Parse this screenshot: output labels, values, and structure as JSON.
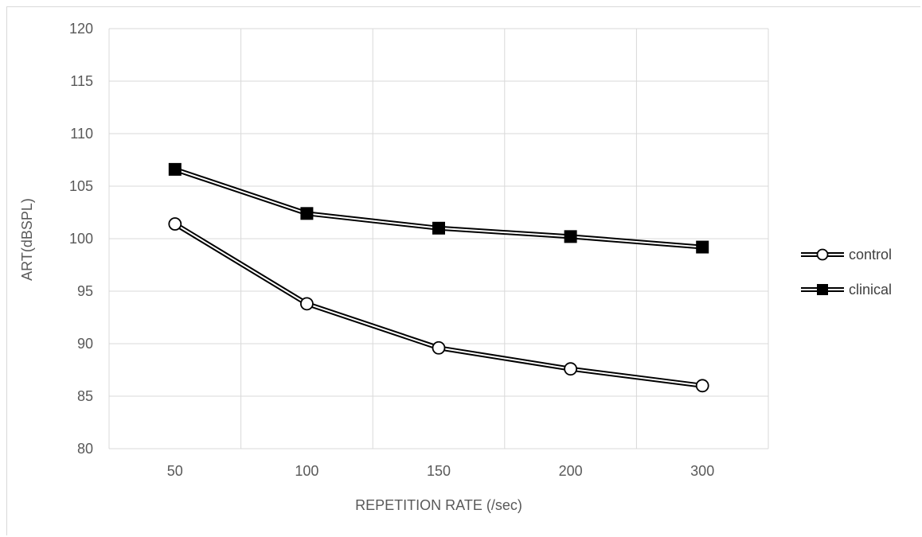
{
  "chart_data": {
    "type": "line",
    "categories": [
      "50",
      "100",
      "150",
      "200",
      "300"
    ],
    "series": [
      {
        "name": "control",
        "values": [
          101.4,
          93.8,
          89.6,
          87.6,
          86.0
        ],
        "marker": "circle-open",
        "color": "#000000"
      },
      {
        "name": "clinical",
        "values": [
          106.6,
          102.4,
          101.0,
          100.2,
          99.2
        ],
        "marker": "square-filled",
        "color": "#000000"
      }
    ],
    "title": "",
    "xlabel": "REPETITION RATE (/sec)",
    "ylabel": "ART(dBSPL)",
    "ylim": [
      80,
      120
    ],
    "yticks": [
      "80",
      "85",
      "90",
      "95",
      "100",
      "105",
      "110",
      "115",
      "120"
    ],
    "grid": true,
    "legend": "right"
  }
}
